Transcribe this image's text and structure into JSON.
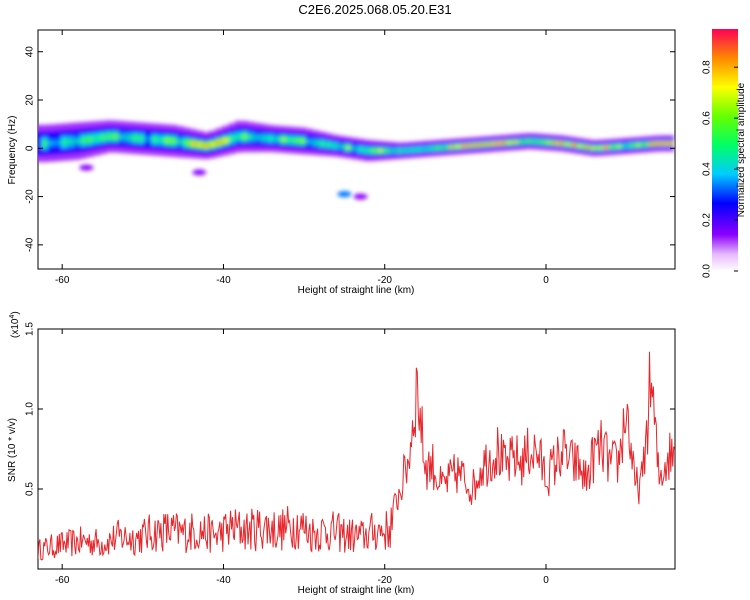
{
  "title": "C2E6.2025.068.05.20.E31",
  "chart_data": [
    {
      "type": "heatmap",
      "xlabel": "Height of straight line (km)",
      "ylabel": "Frequency (Hz)",
      "xlim": [
        -63,
        16
      ],
      "ylim": [
        -50,
        49
      ],
      "xticks": [
        -60,
        -40,
        -20,
        0
      ],
      "yticks": [
        -40,
        -20,
        0,
        20,
        40
      ],
      "colorbar": {
        "label": "Normalized spectral amplitude",
        "range": [
          0.0,
          0.95
        ],
        "ticks": [
          "0.0",
          "0.2",
          "0.4",
          "0.6",
          "0.8"
        ]
      },
      "band": [
        {
          "x": -62,
          "center": 2,
          "width": 7,
          "amp": 0.45
        },
        {
          "x": -58,
          "center": 3,
          "width": 7,
          "amp": 0.5
        },
        {
          "x": -54,
          "center": 5,
          "width": 6,
          "amp": 0.55
        },
        {
          "x": -50,
          "center": 4,
          "width": 6,
          "amp": 0.5
        },
        {
          "x": -46,
          "center": 3,
          "width": 6,
          "amp": 0.55
        },
        {
          "x": -42,
          "center": 1,
          "width": 5,
          "amp": 0.8
        },
        {
          "x": -38,
          "center": 5,
          "width": 6,
          "amp": 0.55
        },
        {
          "x": -34,
          "center": 4,
          "width": 5,
          "amp": 0.55
        },
        {
          "x": -30,
          "center": 3,
          "width": 5,
          "amp": 0.55
        },
        {
          "x": -26,
          "center": 1,
          "width": 4,
          "amp": 0.55
        },
        {
          "x": -22,
          "center": -1,
          "width": 4,
          "amp": 0.6
        },
        {
          "x": -18,
          "center": -1,
          "width": 3,
          "amp": 0.6
        },
        {
          "x": -14,
          "center": 0,
          "width": 3,
          "amp": 0.55
        },
        {
          "x": -10,
          "center": 1,
          "width": 3,
          "amp": 0.85
        },
        {
          "x": -6,
          "center": 2,
          "width": 3,
          "amp": 0.9
        },
        {
          "x": -2,
          "center": 3,
          "width": 3,
          "amp": 0.6
        },
        {
          "x": 2,
          "center": 2,
          "width": 3,
          "amp": 0.85
        },
        {
          "x": 6,
          "center": 0,
          "width": 3,
          "amp": 0.9
        },
        {
          "x": 10,
          "center": 1,
          "width": 3,
          "amp": 0.6
        },
        {
          "x": 14,
          "center": 2,
          "width": 3,
          "amp": 0.85
        }
      ],
      "specks": [
        {
          "x": -43,
          "y": -10,
          "amp": 0.15
        },
        {
          "x": -25,
          "y": -19,
          "amp": 0.35
        },
        {
          "x": -23,
          "y": -20,
          "amp": 0.15
        },
        {
          "x": -57,
          "y": -8,
          "amp": 0.15
        }
      ]
    },
    {
      "type": "line",
      "xlabel": "Height of straight line (km)",
      "ylabel": "SNR (10 * v/v)",
      "scale_note": "(x10",
      "scale_exp": "4",
      "scale_close": ")",
      "xlim": [
        -63,
        16
      ],
      "ylim": [
        0,
        1.5
      ],
      "xticks": [
        -60,
        -40,
        -20,
        0
      ],
      "yticks": [
        0.5,
        1.0,
        1.5
      ],
      "series": [
        {
          "color": "#e8262b",
          "x": [
            -63,
            -61,
            -59,
            -57,
            -55,
            -53,
            -51,
            -49,
            -47,
            -45,
            -43,
            -41,
            -39,
            -37,
            -35,
            -33,
            -31,
            -29,
            -27,
            -25,
            -23,
            -21,
            -19.5,
            -18,
            -17,
            -16,
            -15,
            -14,
            -13,
            -12,
            -11,
            -10,
            -9,
            -8,
            -7,
            -6,
            -5,
            -4,
            -3,
            -2,
            -1,
            0,
            1,
            2,
            3,
            4,
            5,
            6,
            7,
            8,
            9,
            10,
            11,
            12,
            13,
            14,
            15,
            16
          ],
          "y": [
            0.15,
            0.18,
            0.2,
            0.22,
            0.2,
            0.25,
            0.24,
            0.28,
            0.3,
            0.28,
            0.3,
            0.26,
            0.32,
            0.3,
            0.33,
            0.3,
            0.35,
            0.28,
            0.3,
            0.27,
            0.25,
            0.3,
            0.3,
            0.55,
            0.75,
            1.25,
            0.7,
            0.7,
            0.55,
            0.6,
            0.65,
            0.6,
            0.55,
            0.7,
            0.75,
            0.8,
            0.68,
            0.75,
            0.72,
            0.8,
            0.78,
            0.62,
            0.7,
            0.8,
            0.72,
            0.7,
            0.6,
            0.78,
            0.82,
            0.7,
            0.72,
            1.1,
            0.55,
            0.6,
            1.3,
            0.6,
            0.75,
            0.8
          ]
        }
      ]
    }
  ]
}
